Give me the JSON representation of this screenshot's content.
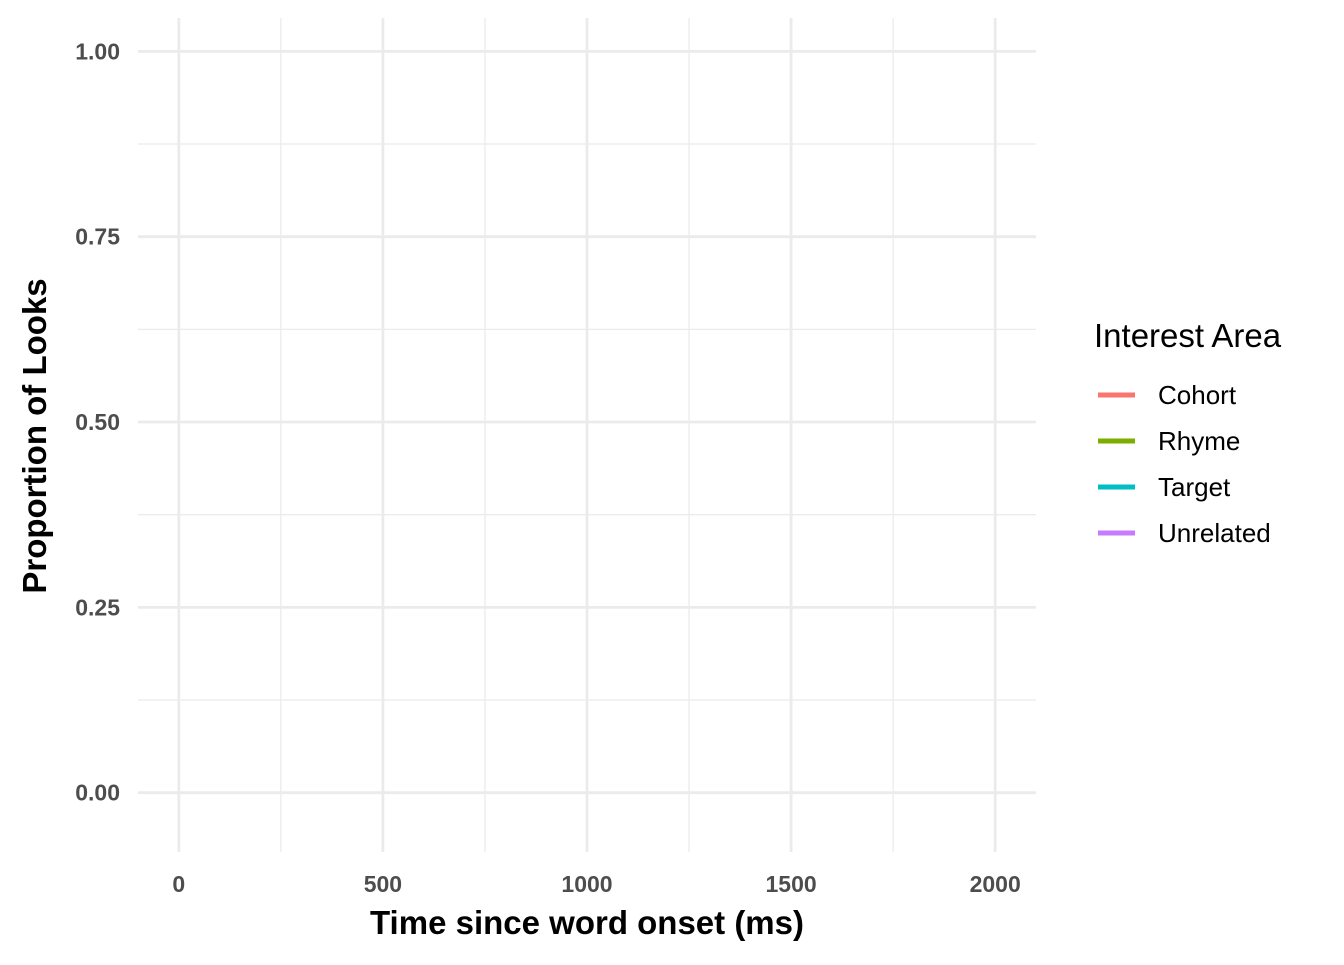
{
  "chart_data": {
    "type": "line",
    "title": "",
    "xlabel": "Time since word onset (ms)",
    "ylabel": "Proportion of Looks",
    "xlim": [
      -100,
      2100
    ],
    "ylim": [
      -0.08,
      1.045
    ],
    "x_major_ticks": [
      0,
      500,
      1000,
      1500,
      2000
    ],
    "x_minor_ticks": [
      250,
      750,
      1250,
      1750
    ],
    "y_major_ticks": [
      0,
      0.25,
      0.5,
      0.75,
      1.0
    ],
    "y_minor_ticks": [
      0.125,
      0.375,
      0.625,
      0.875
    ],
    "x_tick_labels": [
      "0",
      "500",
      "1000",
      "1500",
      "2000"
    ],
    "y_tick_labels": [
      "0.00",
      "0.25",
      "0.50",
      "0.75",
      "1.00"
    ],
    "grid": true,
    "legend_position": "right",
    "legend": {
      "title": "Interest Area",
      "entries": [
        {
          "label": "Cohort",
          "color": "#F8766D"
        },
        {
          "label": "Rhyme",
          "color": "#7CAE00"
        },
        {
          "label": "Target",
          "color": "#00BFC4"
        },
        {
          "label": "Unrelated",
          "color": "#C77CFF"
        }
      ]
    },
    "series": [
      {
        "name": "Cohort",
        "x": [],
        "y": []
      },
      {
        "name": "Rhyme",
        "x": [],
        "y": []
      },
      {
        "name": "Target",
        "x": [],
        "y": []
      },
      {
        "name": "Unrelated",
        "x": [],
        "y": []
      }
    ]
  },
  "colors": {
    "grid_major": "#ebebeb",
    "grid_minor": "#ebebeb"
  }
}
